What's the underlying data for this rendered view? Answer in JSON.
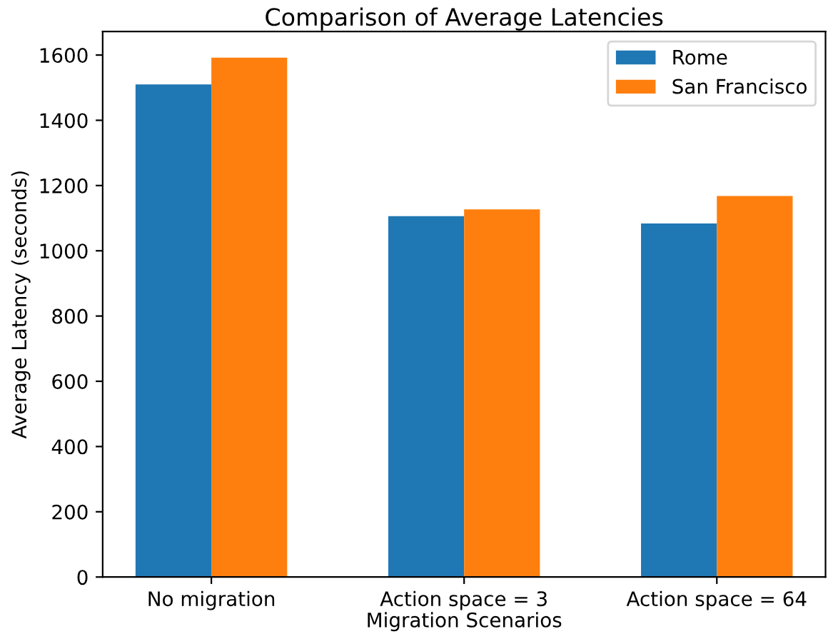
{
  "chart_data": {
    "type": "bar",
    "title": "Comparison of Average Latencies",
    "xlabel": "Migration Scenarios",
    "ylabel": "Average Latency (seconds)",
    "categories": [
      "No migration",
      "Action space = 3",
      "Action space = 64"
    ],
    "series": [
      {
        "name": "Rome",
        "color": "#1f77b4",
        "values": [
          1510,
          1106,
          1084
        ]
      },
      {
        "name": "San Francisco",
        "color": "#ff7f0e",
        "values": [
          1592,
          1127,
          1168
        ]
      }
    ],
    "ylim": [
      0,
      1672
    ],
    "yticks": [
      0,
      200,
      400,
      600,
      800,
      1000,
      1200,
      1400,
      1600
    ],
    "grid": false,
    "legend": "top right"
  }
}
